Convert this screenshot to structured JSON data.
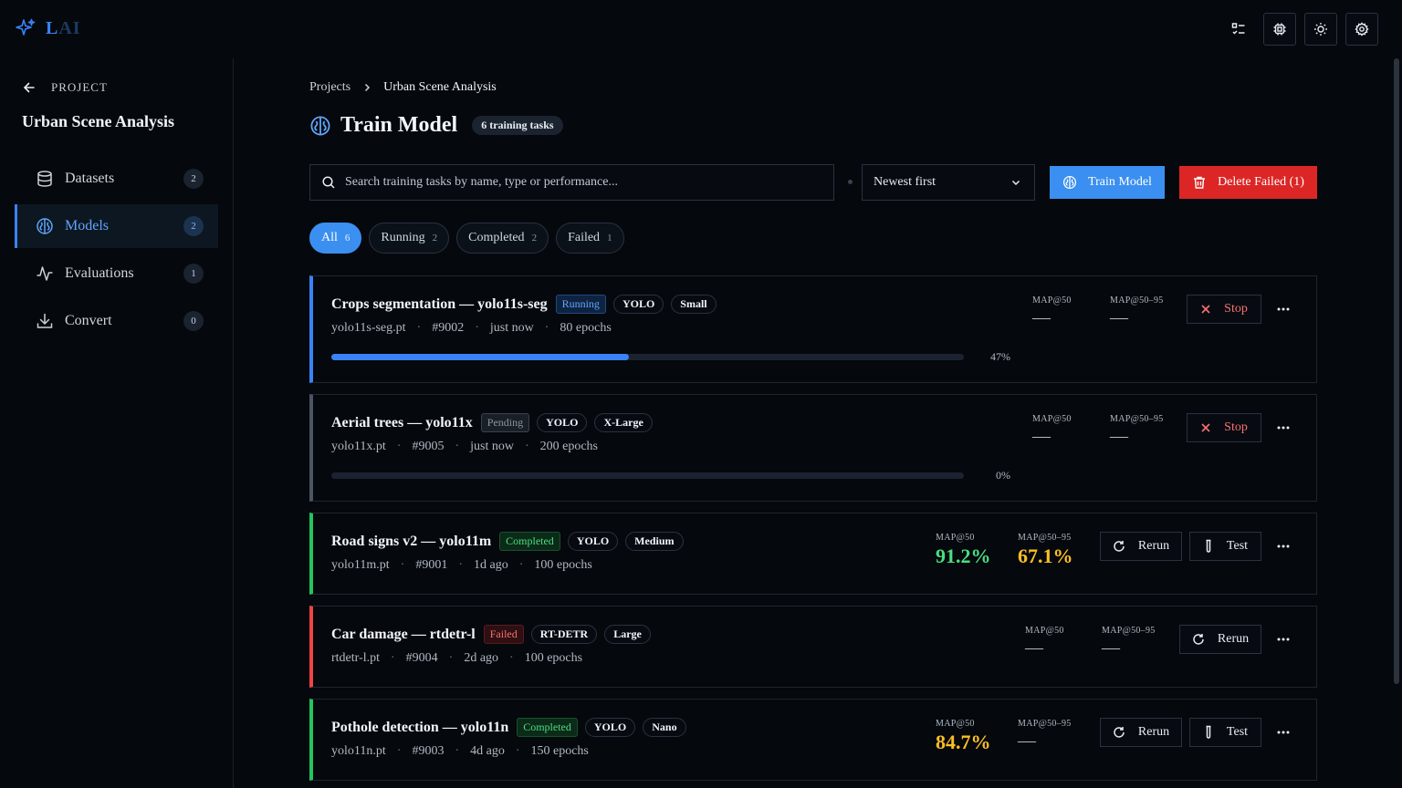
{
  "app": {
    "logo_text_a": "L",
    "logo_text_b": "AI"
  },
  "topbar": {
    "icons": [
      "checklist-icon",
      "chip-icon",
      "sun-icon",
      "settings-icon"
    ]
  },
  "sidebar": {
    "back_label": "PROJECT",
    "project_name": "Urban Scene Analysis",
    "items": [
      {
        "label": "Datasets",
        "count": "2",
        "icon": "database-icon"
      },
      {
        "label": "Models",
        "count": "2",
        "icon": "brain-icon",
        "active": true
      },
      {
        "label": "Evaluations",
        "count": "1",
        "icon": "activity-icon"
      },
      {
        "label": "Convert",
        "count": "0",
        "icon": "download-icon"
      }
    ]
  },
  "breadcrumb": {
    "root": "Projects",
    "current": "Urban Scene Analysis"
  },
  "header": {
    "title": "Train Model",
    "badge": "6 training tasks"
  },
  "toolbar": {
    "search_placeholder": "Search training tasks by name, type or performance...",
    "sort_value": "Newest first",
    "train_label": "Train Model",
    "delete_label": "Delete Failed (1)"
  },
  "filters": [
    {
      "label": "All",
      "count": "6",
      "active": true
    },
    {
      "label": "Running",
      "count": "2"
    },
    {
      "label": "Completed",
      "count": "2"
    },
    {
      "label": "Failed",
      "count": "1"
    }
  ],
  "metric_labels": {
    "map50": "MAP@50",
    "map5095": "MAP@50–95"
  },
  "tasks": [
    {
      "title": "Crops segmentation — yolo11s-seg",
      "status": "Running",
      "framework": "YOLO",
      "size": "Small",
      "weights": "yolo11s-seg.pt",
      "id": "#9002",
      "time": "just now",
      "epochs": "80 epochs",
      "progress_pct": 47,
      "progress_label": "47%",
      "map50": "—",
      "map5095": "—",
      "actions": [
        "Stop"
      ]
    },
    {
      "title": "Aerial trees — yolo11x",
      "status": "Pending",
      "framework": "YOLO",
      "size": "X-Large",
      "weights": "yolo11x.pt",
      "id": "#9005",
      "time": "just now",
      "epochs": "200 epochs",
      "progress_pct": 0,
      "progress_label": "0%",
      "map50": "—",
      "map5095": "—",
      "actions": [
        "Stop"
      ]
    },
    {
      "title": "Road signs v2 — yolo11m",
      "status": "Completed",
      "framework": "YOLO",
      "size": "Medium",
      "weights": "yolo11m.pt",
      "id": "#9001",
      "time": "1d ago",
      "epochs": "100 epochs",
      "map50": "91.2%",
      "map5095": "67.1%",
      "actions": [
        "Rerun",
        "Test"
      ]
    },
    {
      "title": "Car damage — rtdetr-l",
      "status": "Failed",
      "framework": "RT-DETR",
      "size": "Large",
      "weights": "rtdetr-l.pt",
      "id": "#9004",
      "time": "2d ago",
      "epochs": "100 epochs",
      "map50": "—",
      "map5095": "—",
      "actions": [
        "Rerun"
      ]
    },
    {
      "title": "Pothole detection — yolo11n",
      "status": "Completed",
      "framework": "YOLO",
      "size": "Nano",
      "weights": "yolo11n.pt",
      "id": "#9003",
      "time": "4d ago",
      "epochs": "150 epochs",
      "map50": "84.7%",
      "map5095": "—",
      "actions": [
        "Rerun",
        "Test"
      ]
    }
  ],
  "colors": {
    "accent": "#3b82f6",
    "danger": "#dc2626",
    "success": "#4ade80",
    "warning": "#fbbf24",
    "background": "#05080d"
  }
}
